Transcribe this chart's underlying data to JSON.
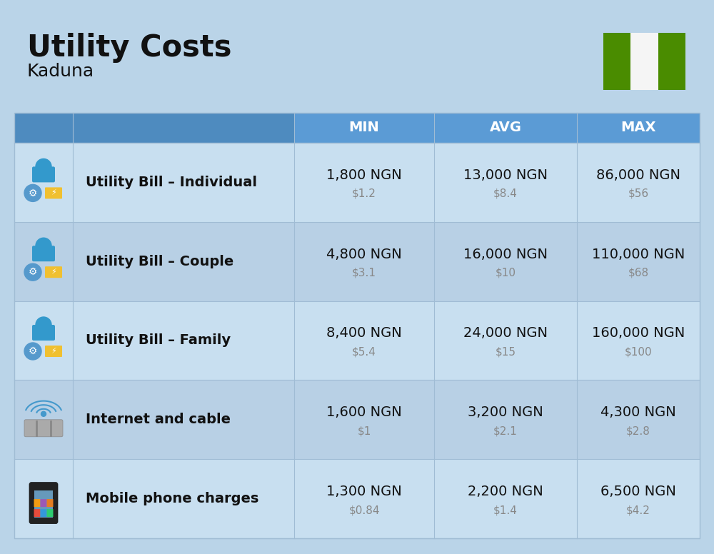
{
  "title": "Utility Costs",
  "subtitle": "Kaduna",
  "background_color": "#bad4e8",
  "header_color": "#5b9bd5",
  "header_text_color": "#ffffff",
  "row_bg_even": "#c8dff0",
  "row_bg_odd": "#b8d0e5",
  "divider_color": "#a0bcd4",
  "col_headers": [
    "MIN",
    "AVG",
    "MAX"
  ],
  "rows": [
    {
      "label": "Utility Bill – Individual",
      "min_ngn": "1,800 NGN",
      "min_usd": "$1.2",
      "avg_ngn": "13,000 NGN",
      "avg_usd": "$8.4",
      "max_ngn": "86,000 NGN",
      "max_usd": "$56"
    },
    {
      "label": "Utility Bill – Couple",
      "min_ngn": "4,800 NGN",
      "min_usd": "$3.1",
      "avg_ngn": "16,000 NGN",
      "avg_usd": "$10",
      "max_ngn": "110,000 NGN",
      "max_usd": "$68"
    },
    {
      "label": "Utility Bill – Family",
      "min_ngn": "8,400 NGN",
      "min_usd": "$5.4",
      "avg_ngn": "24,000 NGN",
      "avg_usd": "$15",
      "max_ngn": "160,000 NGN",
      "max_usd": "$100"
    },
    {
      "label": "Internet and cable",
      "min_ngn": "1,600 NGN",
      "min_usd": "$1",
      "avg_ngn": "3,200 NGN",
      "avg_usd": "$2.1",
      "max_ngn": "4,300 NGN",
      "max_usd": "$2.8"
    },
    {
      "label": "Mobile phone charges",
      "min_ngn": "1,300 NGN",
      "min_usd": "$0.84",
      "avg_ngn": "2,200 NGN",
      "avg_usd": "$1.4",
      "max_ngn": "6,500 NGN",
      "max_usd": "$4.2"
    }
  ],
  "title_fontsize": 30,
  "subtitle_fontsize": 18,
  "ngn_fontsize": 14,
  "usd_fontsize": 11,
  "label_fontsize": 14,
  "header_fontsize": 14,
  "ngn_color": "#111111",
  "usd_color": "#888888",
  "label_color": "#111111",
  "flag_green": "#4a8c00",
  "flag_white": "#f5f5f5"
}
